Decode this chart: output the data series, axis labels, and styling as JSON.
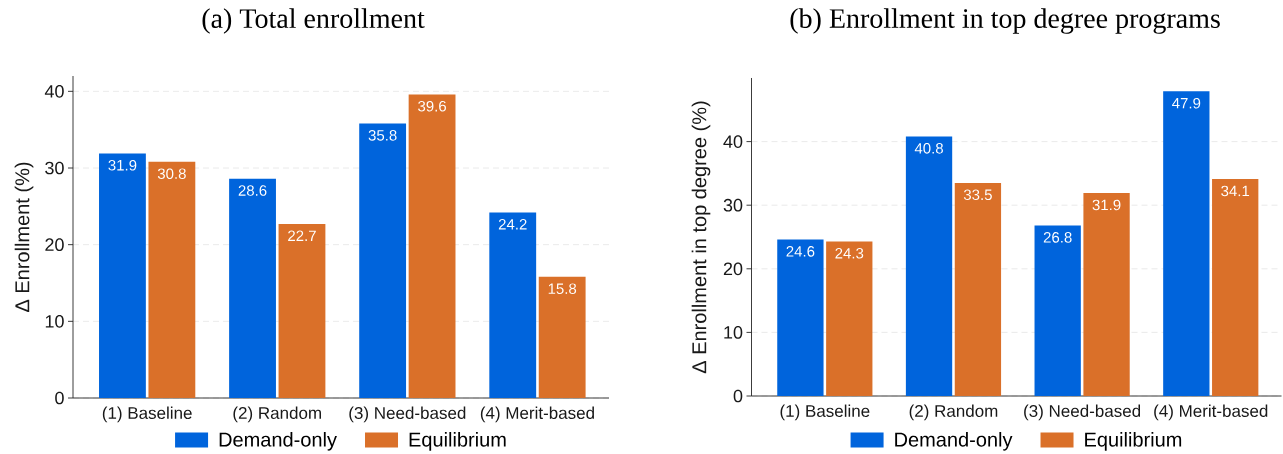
{
  "chart_data": [
    {
      "type": "bar",
      "title": "(a) Total enrollment",
      "ylabel": "Δ Enrollment (%)",
      "categories": [
        "(1) Baseline",
        "(2) Random",
        "(3) Need-based",
        "(4) Merit-based"
      ],
      "series": [
        {
          "name": "Demand-only",
          "color": "#0064DC",
          "values": [
            31.9,
            28.6,
            35.8,
            24.2
          ]
        },
        {
          "name": "Equilibrium",
          "color": "#DA7029",
          "values": [
            30.8,
            22.7,
            39.6,
            15.8
          ]
        }
      ],
      "ylim": [
        0,
        42
      ],
      "yticks": [
        0,
        10,
        20,
        30,
        40
      ],
      "grid": "y",
      "legend": "bottom",
      "data_labels": true
    },
    {
      "type": "bar",
      "title": "(b) Enrollment in top degree programs",
      "ylabel": "Δ Enrollment in top degree (%)",
      "categories": [
        "(1) Baseline",
        "(2) Random",
        "(3) Need-based",
        "(4) Merit-based"
      ],
      "series": [
        {
          "name": "Demand-only",
          "color": "#0064DC",
          "values": [
            24.6,
            40.8,
            26.8,
            47.9
          ]
        },
        {
          "name": "Equilibrium",
          "color": "#DA7029",
          "values": [
            24.3,
            33.5,
            31.9,
            34.1
          ]
        }
      ],
      "ylim": [
        0,
        50
      ],
      "yticks": [
        0,
        10,
        20,
        30,
        40
      ],
      "grid": "y",
      "legend": "bottom",
      "data_labels": true
    }
  ]
}
